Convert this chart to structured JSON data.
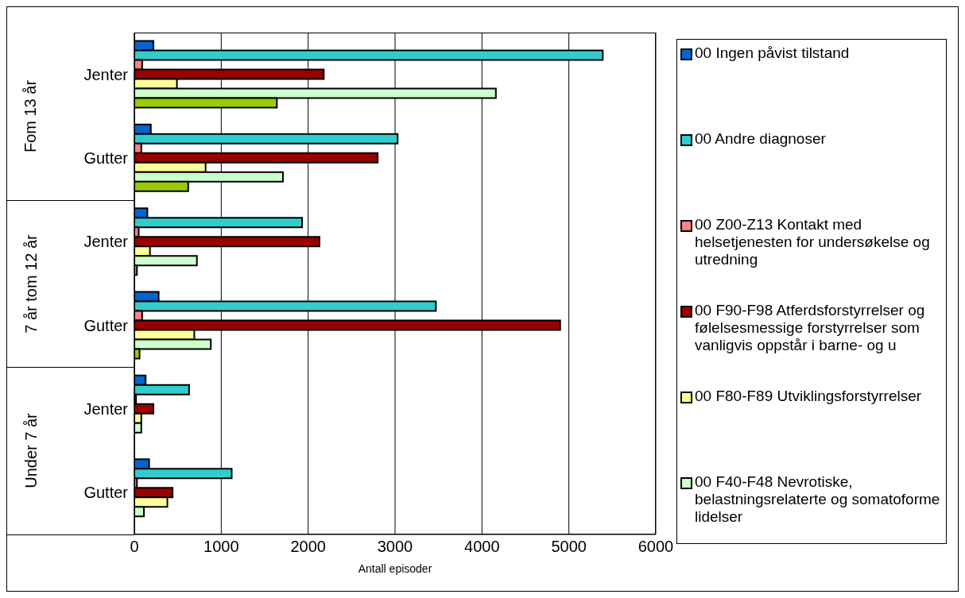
{
  "chart_data": {
    "type": "bar",
    "orientation": "horizontal",
    "xlabel": "Antall episoder",
    "categories": [
      "Jenter",
      "Gutter",
      "Jenter",
      "Gutter",
      "Jenter",
      "Gutter"
    ],
    "annotations": [
      "Fom 13 år",
      "7 år tom 12 år",
      "Under 7 år"
    ],
    "series": [
      {
        "name": "00 Ingen påvist tilstand",
        "color": "#0066cc",
        "values": [
          220,
          190,
          150,
          280,
          130,
          170
        ]
      },
      {
        "name": "00 Andre diagnoser",
        "color": "#33cccc",
        "values": [
          5390,
          3030,
          1930,
          3470,
          630,
          1120
        ]
      },
      {
        "name": "00 Z00-Z13 Kontakt med helsetjenesten for undersøkelse og utredning",
        "color": "#ff8080",
        "values": [
          90,
          80,
          50,
          90,
          20,
          30
        ]
      },
      {
        "name": "00 F90-F98 Atferdsforstyrrelser og følelsesmessige forstyrrelser som vanligvis oppstår i barne- og u",
        "color": "#990000",
        "values": [
          2180,
          2800,
          2130,
          4900,
          220,
          440
        ]
      },
      {
        "name": "00 F80-F89 Utviklingsforstyrrelser",
        "color": "#ffff99",
        "values": [
          490,
          820,
          180,
          690,
          80,
          380
        ]
      },
      {
        "name": "00 F40-F48 Nevrotiske, belastningsrelaterte og somatoforme lidelser",
        "color": "#ccffcc",
        "values": [
          4160,
          1710,
          720,
          880,
          80,
          110
        ]
      },
      {
        "color": "#99cc00",
        "values": [
          1640,
          620,
          30,
          60,
          0,
          null
        ]
      }
    ],
    "xlim": [
      0,
      6000
    ],
    "xticks": [
      0,
      1000,
      2000,
      3000,
      4000,
      5000,
      6000
    ],
    "grid": "x",
    "legend": "right"
  }
}
